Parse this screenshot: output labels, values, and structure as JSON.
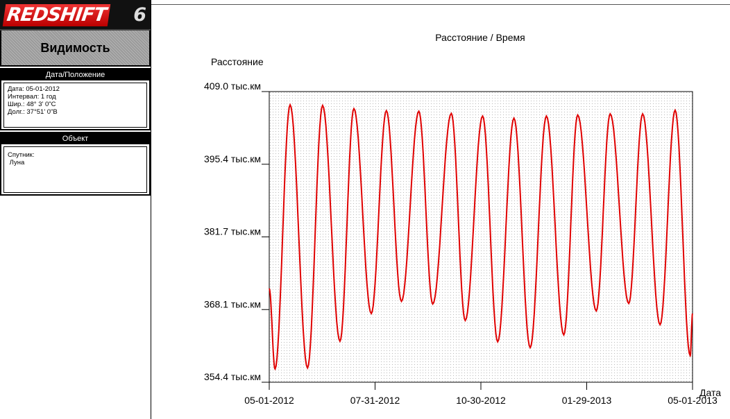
{
  "sidebar": {
    "logo_text": "REDSHIFT",
    "logo_version": "6",
    "title": "Видимость",
    "date_panel": {
      "header": "Дата/Положение",
      "lines": [
        "Дата: 05-01-2012",
        "Интервал: 1 год",
        "Шир.: 48° 3' 0\"С",
        "Долг.: 37°51' 0\"В"
      ]
    },
    "object_panel": {
      "header": "Объект",
      "lines": [
        "Спутник:",
        " Луна"
      ]
    }
  },
  "chart_data": {
    "type": "line",
    "title": "Расстояние / Время",
    "ylabel": "Расстояние",
    "xlabel": "Дата",
    "ylim": [
      354.4,
      409.0
    ],
    "y_ticks": [
      "409.0 тыс.км",
      "395.4 тыс.км",
      "381.7 тыс.км",
      "368.1 тыс.км",
      "354.4 тыс.км"
    ],
    "x_ticks": [
      "05-01-2012",
      "07-31-2012",
      "10-30-2012",
      "01-29-2013",
      "05-01-2013"
    ],
    "xlim": [
      "2012-05-01",
      "2013-05-01"
    ],
    "grid": "dotted",
    "series": [
      {
        "color": "#e00000",
        "extrema": [
          {
            "date": "2012-05-01",
            "value": 372.0
          },
          {
            "date": "2012-05-06",
            "value": 356.9
          },
          {
            "date": "2012-05-19",
            "value": 406.5
          },
          {
            "date": "2012-06-03",
            "value": 357.1
          },
          {
            "date": "2012-06-16",
            "value": 406.4
          },
          {
            "date": "2012-07-01",
            "value": 362.1
          },
          {
            "date": "2012-07-13",
            "value": 405.8
          },
          {
            "date": "2012-07-28",
            "value": 367.3
          },
          {
            "date": "2012-08-10",
            "value": 405.4
          },
          {
            "date": "2012-08-23",
            "value": 369.6
          },
          {
            "date": "2012-09-07",
            "value": 405.3
          },
          {
            "date": "2012-09-19",
            "value": 369.1
          },
          {
            "date": "2012-10-05",
            "value": 404.9
          },
          {
            "date": "2012-10-17",
            "value": 366.0
          },
          {
            "date": "2012-11-01",
            "value": 404.4
          },
          {
            "date": "2012-11-14",
            "value": 362.0
          },
          {
            "date": "2012-11-28",
            "value": 404.0
          },
          {
            "date": "2012-12-12",
            "value": 360.9
          },
          {
            "date": "2012-12-26",
            "value": 404.4
          },
          {
            "date": "2013-01-10",
            "value": 363.3
          },
          {
            "date": "2013-01-22",
            "value": 404.6
          },
          {
            "date": "2013-02-07",
            "value": 367.8
          },
          {
            "date": "2013-02-19",
            "value": 404.8
          },
          {
            "date": "2013-03-07",
            "value": 369.2
          },
          {
            "date": "2013-03-19",
            "value": 404.8
          },
          {
            "date": "2013-04-03",
            "value": 365.2
          },
          {
            "date": "2013-04-16",
            "value": 405.5
          },
          {
            "date": "2013-04-29",
            "value": 359.4
          },
          {
            "date": "2013-05-01",
            "value": 367.3
          }
        ]
      }
    ]
  }
}
